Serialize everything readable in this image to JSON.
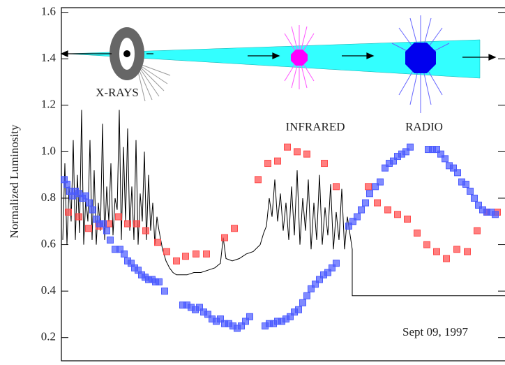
{
  "chart_data": {
    "type": "scatter",
    "y_label": "Normalized Luminosity",
    "xlim": [
      0,
      636
    ],
    "ylim": [
      0.1,
      1.62
    ],
    "yticks": [
      0.2,
      0.4,
      0.6,
      0.8,
      {
        "value": 1.0,
        "label": "1.0"
      },
      1.2,
      1.4,
      1.6
    ],
    "annotations": [
      {
        "text": "X-RAYS"
      },
      {
        "text": "INFRARED",
        "color": "#e8202a"
      },
      {
        "text": "RADIO",
        "color": "#2a2ae8"
      },
      {
        "text": "Sept 09, 1997"
      }
    ],
    "series": [
      {
        "type": "line",
        "color": "#000000",
        "x": [
          2,
          5,
          8,
          11,
          14,
          17,
          20,
          23,
          26,
          29,
          32,
          35,
          38,
          41,
          44,
          47,
          50,
          53,
          56,
          59,
          62,
          65,
          68,
          71,
          74,
          77,
          80,
          83,
          86,
          89,
          92,
          95,
          98,
          101,
          104,
          107,
          110,
          113,
          116,
          119,
          122,
          125,
          128,
          131,
          134,
          137,
          140,
          145,
          150,
          155,
          160,
          165,
          170,
          180,
          190,
          200,
          210,
          220,
          228,
          232,
          236,
          245,
          255,
          265,
          275,
          285,
          290,
          294,
          298,
          302,
          306,
          310,
          314,
          318,
          322,
          326,
          330,
          334,
          338,
          342,
          346,
          350,
          354,
          358,
          362,
          366,
          370,
          374,
          378,
          382,
          386,
          390,
          394,
          398,
          402,
          406,
          410,
          414,
          417,
          417,
          636
        ],
        "values": [
          0.62,
          0.95,
          0.6,
          0.85,
          0.7,
          1.05,
          0.62,
          0.9,
          0.65,
          1.18,
          0.6,
          0.8,
          0.7,
          1.05,
          0.62,
          0.92,
          0.6,
          0.78,
          0.66,
          1.12,
          0.62,
          0.85,
          0.7,
          0.95,
          0.64,
          0.8,
          0.75,
          1.18,
          0.62,
          1.02,
          0.7,
          1.1,
          0.66,
          0.85,
          0.62,
          1.05,
          0.6,
          0.82,
          0.7,
          1.0,
          0.62,
          0.9,
          0.66,
          0.78,
          0.6,
          0.72,
          0.66,
          0.58,
          0.53,
          0.5,
          0.48,
          0.47,
          0.47,
          0.47,
          0.48,
          0.48,
          0.49,
          0.5,
          0.52,
          0.63,
          0.54,
          0.53,
          0.54,
          0.56,
          0.57,
          0.6,
          0.65,
          0.68,
          0.8,
          0.72,
          0.88,
          0.7,
          0.82,
          0.66,
          0.78,
          0.62,
          0.85,
          0.64,
          0.92,
          0.6,
          0.8,
          0.66,
          0.88,
          0.58,
          0.78,
          0.62,
          0.9,
          0.6,
          0.76,
          0.64,
          0.86,
          0.58,
          0.74,
          0.62,
          0.84,
          0.58,
          0.72,
          0.64,
          0.58,
          0.38,
          0.38
        ]
      },
      {
        "type": "scatter",
        "color": "#ff4a4a",
        "x": [
          10,
          25,
          39,
          54,
          68,
          82,
          95,
          108,
          121,
          138,
          151,
          165,
          178,
          193,
          208,
          234,
          248,
          282,
          296,
          310,
          324,
          338,
          352,
          377,
          394,
          440,
          453,
          468,
          482,
          496,
          510,
          524,
          538,
          552,
          567,
          582,
          596,
          610,
          625
        ],
        "values": [
          0.74,
          0.72,
          0.67,
          0.68,
          0.69,
          0.72,
          0.69,
          0.69,
          0.66,
          0.61,
          0.57,
          0.53,
          0.55,
          0.56,
          0.56,
          0.63,
          0.67,
          0.88,
          0.95,
          0.96,
          1.02,
          1.0,
          0.99,
          0.95,
          0.85,
          0.85,
          0.78,
          0.75,
          0.73,
          0.71,
          0.65,
          0.6,
          0.57,
          0.54,
          0.58,
          0.57,
          0.66,
          0.74,
          0.74
        ]
      },
      {
        "type": "scatter",
        "color": "#4a5aff",
        "x": [
          4,
          8,
          12,
          16,
          20,
          25,
          30,
          35,
          40,
          45,
          50,
          55,
          60,
          65,
          70,
          77,
          84,
          90,
          95,
          100,
          105,
          110,
          115,
          120,
          125,
          130,
          135,
          140,
          148,
          174,
          180,
          186,
          192,
          198,
          204,
          210,
          216,
          222,
          228,
          234,
          240,
          246,
          252,
          258,
          264,
          270,
          292,
          298,
          304,
          310,
          316,
          322,
          328,
          334,
          340,
          346,
          352,
          358,
          364,
          370,
          376,
          382,
          388,
          394,
          412,
          418,
          424,
          430,
          436,
          442,
          450,
          457,
          464,
          470,
          476,
          482,
          488,
          494,
          500,
          526,
          532,
          538,
          544,
          550,
          556,
          562,
          568,
          574,
          580,
          586,
          592,
          598,
          604,
          610,
          616,
          622
        ],
        "values": [
          0.88,
          0.86,
          0.83,
          0.81,
          0.83,
          0.82,
          0.8,
          0.81,
          0.78,
          0.75,
          0.71,
          0.69,
          0.69,
          0.66,
          0.62,
          0.58,
          0.58,
          0.56,
          0.53,
          0.52,
          0.5,
          0.49,
          0.47,
          0.46,
          0.45,
          0.45,
          0.44,
          0.44,
          0.4,
          0.34,
          0.34,
          0.33,
          0.32,
          0.33,
          0.31,
          0.3,
          0.28,
          0.27,
          0.28,
          0.26,
          0.26,
          0.25,
          0.24,
          0.25,
          0.27,
          0.29,
          0.25,
          0.26,
          0.26,
          0.27,
          0.27,
          0.28,
          0.29,
          0.31,
          0.32,
          0.35,
          0.38,
          0.41,
          0.43,
          0.45,
          0.47,
          0.48,
          0.5,
          0.52,
          0.68,
          0.7,
          0.72,
          0.75,
          0.78,
          0.82,
          0.85,
          0.87,
          0.93,
          0.95,
          0.96,
          0.98,
          0.99,
          1.0,
          1.02,
          1.01,
          1.01,
          1.01,
          0.99,
          0.97,
          0.94,
          0.93,
          0.91,
          0.87,
          0.86,
          0.83,
          0.8,
          0.77,
          0.75,
          0.74,
          0.74,
          0.73
        ]
      }
    ]
  }
}
